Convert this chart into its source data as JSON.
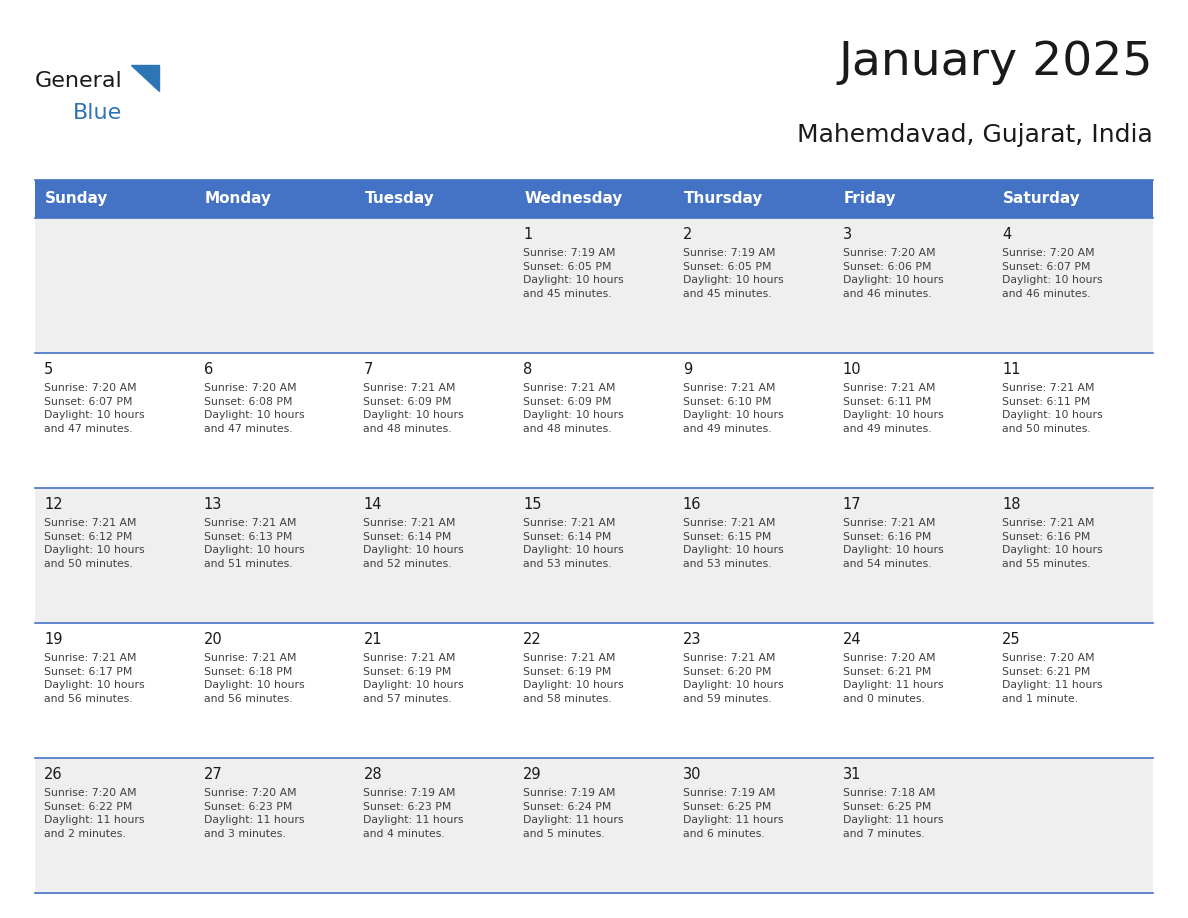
{
  "title": "January 2025",
  "subtitle": "Mahemdavad, Gujarat, India",
  "header_bg": "#4472C4",
  "header_text_color": "#FFFFFF",
  "day_names": [
    "Sunday",
    "Monday",
    "Tuesday",
    "Wednesday",
    "Thursday",
    "Friday",
    "Saturday"
  ],
  "row_bg_even": "#EFEFEF",
  "row_bg_odd": "#FFFFFF",
  "cell_border_color": "#4472C4",
  "day_number_color": "#1a1a1a",
  "info_text_color": "#404040",
  "title_color": "#1a1a1a",
  "subtitle_color": "#1a1a1a",
  "logo_general_color": "#1a1a1a",
  "logo_blue_color": "#2E75B6",
  "calendar": [
    [
      {
        "day": "",
        "info": ""
      },
      {
        "day": "",
        "info": ""
      },
      {
        "day": "",
        "info": ""
      },
      {
        "day": "1",
        "info": "Sunrise: 7:19 AM\nSunset: 6:05 PM\nDaylight: 10 hours\nand 45 minutes."
      },
      {
        "day": "2",
        "info": "Sunrise: 7:19 AM\nSunset: 6:05 PM\nDaylight: 10 hours\nand 45 minutes."
      },
      {
        "day": "3",
        "info": "Sunrise: 7:20 AM\nSunset: 6:06 PM\nDaylight: 10 hours\nand 46 minutes."
      },
      {
        "day": "4",
        "info": "Sunrise: 7:20 AM\nSunset: 6:07 PM\nDaylight: 10 hours\nand 46 minutes."
      }
    ],
    [
      {
        "day": "5",
        "info": "Sunrise: 7:20 AM\nSunset: 6:07 PM\nDaylight: 10 hours\nand 47 minutes."
      },
      {
        "day": "6",
        "info": "Sunrise: 7:20 AM\nSunset: 6:08 PM\nDaylight: 10 hours\nand 47 minutes."
      },
      {
        "day": "7",
        "info": "Sunrise: 7:21 AM\nSunset: 6:09 PM\nDaylight: 10 hours\nand 48 minutes."
      },
      {
        "day": "8",
        "info": "Sunrise: 7:21 AM\nSunset: 6:09 PM\nDaylight: 10 hours\nand 48 minutes."
      },
      {
        "day": "9",
        "info": "Sunrise: 7:21 AM\nSunset: 6:10 PM\nDaylight: 10 hours\nand 49 minutes."
      },
      {
        "day": "10",
        "info": "Sunrise: 7:21 AM\nSunset: 6:11 PM\nDaylight: 10 hours\nand 49 minutes."
      },
      {
        "day": "11",
        "info": "Sunrise: 7:21 AM\nSunset: 6:11 PM\nDaylight: 10 hours\nand 50 minutes."
      }
    ],
    [
      {
        "day": "12",
        "info": "Sunrise: 7:21 AM\nSunset: 6:12 PM\nDaylight: 10 hours\nand 50 minutes."
      },
      {
        "day": "13",
        "info": "Sunrise: 7:21 AM\nSunset: 6:13 PM\nDaylight: 10 hours\nand 51 minutes."
      },
      {
        "day": "14",
        "info": "Sunrise: 7:21 AM\nSunset: 6:14 PM\nDaylight: 10 hours\nand 52 minutes."
      },
      {
        "day": "15",
        "info": "Sunrise: 7:21 AM\nSunset: 6:14 PM\nDaylight: 10 hours\nand 53 minutes."
      },
      {
        "day": "16",
        "info": "Sunrise: 7:21 AM\nSunset: 6:15 PM\nDaylight: 10 hours\nand 53 minutes."
      },
      {
        "day": "17",
        "info": "Sunrise: 7:21 AM\nSunset: 6:16 PM\nDaylight: 10 hours\nand 54 minutes."
      },
      {
        "day": "18",
        "info": "Sunrise: 7:21 AM\nSunset: 6:16 PM\nDaylight: 10 hours\nand 55 minutes."
      }
    ],
    [
      {
        "day": "19",
        "info": "Sunrise: 7:21 AM\nSunset: 6:17 PM\nDaylight: 10 hours\nand 56 minutes."
      },
      {
        "day": "20",
        "info": "Sunrise: 7:21 AM\nSunset: 6:18 PM\nDaylight: 10 hours\nand 56 minutes."
      },
      {
        "day": "21",
        "info": "Sunrise: 7:21 AM\nSunset: 6:19 PM\nDaylight: 10 hours\nand 57 minutes."
      },
      {
        "day": "22",
        "info": "Sunrise: 7:21 AM\nSunset: 6:19 PM\nDaylight: 10 hours\nand 58 minutes."
      },
      {
        "day": "23",
        "info": "Sunrise: 7:21 AM\nSunset: 6:20 PM\nDaylight: 10 hours\nand 59 minutes."
      },
      {
        "day": "24",
        "info": "Sunrise: 7:20 AM\nSunset: 6:21 PM\nDaylight: 11 hours\nand 0 minutes."
      },
      {
        "day": "25",
        "info": "Sunrise: 7:20 AM\nSunset: 6:21 PM\nDaylight: 11 hours\nand 1 minute."
      }
    ],
    [
      {
        "day": "26",
        "info": "Sunrise: 7:20 AM\nSunset: 6:22 PM\nDaylight: 11 hours\nand 2 minutes."
      },
      {
        "day": "27",
        "info": "Sunrise: 7:20 AM\nSunset: 6:23 PM\nDaylight: 11 hours\nand 3 minutes."
      },
      {
        "day": "28",
        "info": "Sunrise: 7:19 AM\nSunset: 6:23 PM\nDaylight: 11 hours\nand 4 minutes."
      },
      {
        "day": "29",
        "info": "Sunrise: 7:19 AM\nSunset: 6:24 PM\nDaylight: 11 hours\nand 5 minutes."
      },
      {
        "day": "30",
        "info": "Sunrise: 7:19 AM\nSunset: 6:25 PM\nDaylight: 11 hours\nand 6 minutes."
      },
      {
        "day": "31",
        "info": "Sunrise: 7:18 AM\nSunset: 6:25 PM\nDaylight: 11 hours\nand 7 minutes."
      },
      {
        "day": "",
        "info": ""
      }
    ]
  ],
  "fig_width": 11.88,
  "fig_height": 9.18,
  "dpi": 100
}
